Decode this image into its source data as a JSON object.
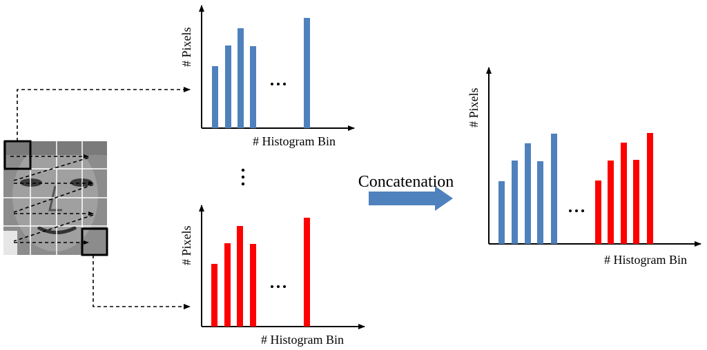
{
  "panels": [
    {
      "y_label": "# Pixels",
      "x_label": "# Histogram Bin"
    },
    {
      "y_label": "# Pixels",
      "x_label": "# Histogram Bin"
    },
    {
      "y_label": "# Pixels",
      "x_label": "# Histogram Bin"
    }
  ],
  "operation": "Concatenation"
}
